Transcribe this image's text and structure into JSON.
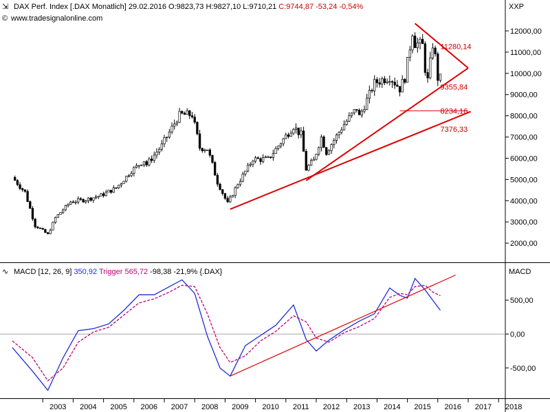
{
  "header": {
    "main_title": "DAX Perf. Index [.DAX  Monatlich] 29.02.2016",
    "ohlc": {
      "o": "O:9823,73",
      "h": "H:9827,10",
      "l": "L:9710,21"
    },
    "close_change": "C:9744,87 -53,24 -0,54%",
    "source": "www.tradesignalonline.com",
    "axis_label": "XXP",
    "macd_name": "MACD [12, 26, 9]",
    "macd_value": "350,92",
    "trigger_name": "Trigger",
    "trigger_value": "565,72",
    "diff": "-98,38 -21,9% {.DAX}",
    "macd_axis_label": "MACD"
  },
  "colors": {
    "price_axis_bg": "#ffffff",
    "trend": "#dd0000",
    "macd": "#1f2bd8",
    "trigger": "#c0007a",
    "candle_up": "#ffffff",
    "candle_down": "#000000",
    "grid": "#cfcfcf"
  },
  "chart_data": [
    {
      "type": "candlestick",
      "title": "DAX Perf. Index [.DAX  Monatlich] 29.02.2016",
      "ylim": [
        1500,
        12600
      ],
      "y_ticks": [
        "2000,00",
        "3000,00",
        "4000,00",
        "5000,00",
        "6000,00",
        "7000,00",
        "8000,00",
        "9000,00",
        "10000,00",
        "11000,00",
        "12000,00"
      ],
      "x_ticks": [
        "2003",
        "2004",
        "2005",
        "2006",
        "2007",
        "2008",
        "2009",
        "2010",
        "2011",
        "2012",
        "2013",
        "2014",
        "2015",
        "2016",
        "2017",
        "2018"
      ],
      "anchors": [
        [
          "2002-01",
          5100
        ],
        [
          "2002-06",
          4400
        ],
        [
          "2002-10",
          2850
        ],
        [
          "2003-03",
          2400
        ],
        [
          "2003-06",
          3200
        ],
        [
          "2003-12",
          3950
        ],
        [
          "2004-06",
          4050
        ],
        [
          "2004-12",
          4250
        ],
        [
          "2005-06",
          4600
        ],
        [
          "2005-12",
          5400
        ],
        [
          "2006-05",
          5900
        ],
        [
          "2006-06",
          5700
        ],
        [
          "2006-12",
          6600
        ],
        [
          "2007-07",
          8050
        ],
        [
          "2007-12",
          8050
        ],
        [
          "2008-03",
          6500
        ],
        [
          "2008-06",
          6450
        ],
        [
          "2008-10",
          4900
        ],
        [
          "2009-02",
          3850
        ],
        [
          "2009-06",
          4800
        ],
        [
          "2009-12",
          5950
        ],
        [
          "2010-06",
          5950
        ],
        [
          "2010-12",
          6900
        ],
        [
          "2011-04",
          7500
        ],
        [
          "2011-07",
          7100
        ],
        [
          "2011-09",
          5500
        ],
        [
          "2011-12",
          5900
        ],
        [
          "2012-03",
          7000
        ],
        [
          "2012-05",
          6300
        ],
        [
          "2012-12",
          7600
        ],
        [
          "2013-05",
          8350
        ],
        [
          "2013-06",
          7950
        ],
        [
          "2013-12",
          9550
        ],
        [
          "2014-06",
          9850
        ],
        [
          "2014-10",
          9300
        ],
        [
          "2014-12",
          9800
        ],
        [
          "2015-03",
          11950
        ],
        [
          "2015-04",
          11450
        ],
        [
          "2015-07",
          11300
        ],
        [
          "2015-08",
          10250
        ],
        [
          "2015-09",
          9650
        ],
        [
          "2015-11",
          11350
        ],
        [
          "2015-12",
          10750
        ],
        [
          "2016-01",
          9800
        ],
        [
          "2016-02",
          9745
        ]
      ],
      "trendlines": [
        {
          "name": "support-2009",
          "from": [
            "2009-03",
            3600
          ],
          "to": [
            "2017-02",
            8200
          ]
        },
        {
          "name": "support-2011",
          "from": [
            "2011-09",
            4950
          ],
          "to": [
            "2017-01",
            10250
          ]
        },
        {
          "name": "resistance-2015",
          "from": [
            "2015-04",
            12350
          ],
          "to": [
            "2017-01",
            10250
          ]
        }
      ],
      "levels": [
        {
          "label": "11280,14",
          "value": 11280.14
        },
        {
          "label": "9355,84",
          "value": 9355.84
        },
        {
          "label": "8234,16",
          "value": 8234.16
        },
        {
          "label": "7376,33",
          "value": 7376.33
        }
      ]
    },
    {
      "type": "line",
      "title": "MACD [12, 26, 9]",
      "ylim": [
        -950,
        1000
      ],
      "y_ticks": [
        "-500,00",
        "0,00",
        "500,00"
      ],
      "series": [
        {
          "name": "MACD",
          "color": "#1f2bd8",
          "values": [
            [
              "2002-01",
              -200
            ],
            [
              "2002-09",
              -550
            ],
            [
              "2003-03",
              -830
            ],
            [
              "2003-09",
              -350
            ],
            [
              "2004-03",
              50
            ],
            [
              "2004-09",
              80
            ],
            [
              "2005-03",
              150
            ],
            [
              "2005-09",
              350
            ],
            [
              "2006-03",
              580
            ],
            [
              "2006-09",
              580
            ],
            [
              "2007-03",
              700
            ],
            [
              "2007-08",
              800
            ],
            [
              "2008-01",
              600
            ],
            [
              "2008-06",
              -30
            ],
            [
              "2008-11",
              -500
            ],
            [
              "2009-03",
              -620
            ],
            [
              "2009-09",
              -170
            ],
            [
              "2010-03",
              -20
            ],
            [
              "2010-09",
              130
            ],
            [
              "2011-04",
              430
            ],
            [
              "2011-09",
              -80
            ],
            [
              "2012-01",
              -250
            ],
            [
              "2012-06",
              -90
            ],
            [
              "2012-12",
              60
            ],
            [
              "2013-06",
              190
            ],
            [
              "2013-12",
              300
            ],
            [
              "2014-06",
              680
            ],
            [
              "2014-10",
              570
            ],
            [
              "2015-01",
              530
            ],
            [
              "2015-04",
              820
            ],
            [
              "2015-08",
              650
            ],
            [
              "2015-11",
              500
            ],
            [
              "2016-02",
              350.92
            ]
          ]
        },
        {
          "name": "Trigger",
          "color": "#c0007a",
          "values": [
            [
              "2002-01",
              -100
            ],
            [
              "2002-09",
              -350
            ],
            [
              "2003-03",
              -690
            ],
            [
              "2003-09",
              -500
            ],
            [
              "2004-03",
              -120
            ],
            [
              "2004-09",
              30
            ],
            [
              "2005-03",
              100
            ],
            [
              "2005-09",
              280
            ],
            [
              "2006-03",
              460
            ],
            [
              "2006-09",
              520
            ],
            [
              "2007-03",
              620
            ],
            [
              "2007-08",
              720
            ],
            [
              "2008-01",
              700
            ],
            [
              "2008-06",
              300
            ],
            [
              "2008-11",
              -200
            ],
            [
              "2009-03",
              -420
            ],
            [
              "2009-09",
              -320
            ],
            [
              "2010-03",
              -100
            ],
            [
              "2010-09",
              40
            ],
            [
              "2011-04",
              270
            ],
            [
              "2011-09",
              180
            ],
            [
              "2012-01",
              -60
            ],
            [
              "2012-06",
              -120
            ],
            [
              "2012-12",
              20
            ],
            [
              "2013-06",
              110
            ],
            [
              "2013-12",
              230
            ],
            [
              "2014-06",
              540
            ],
            [
              "2014-10",
              600
            ],
            [
              "2015-01",
              580
            ],
            [
              "2015-04",
              700
            ],
            [
              "2015-08",
              720
            ],
            [
              "2015-11",
              620
            ],
            [
              "2016-02",
              565.72
            ]
          ]
        }
      ],
      "trendlines": [
        {
          "name": "macd-trend",
          "from": [
            "2009-03",
            -620
          ],
          "to": [
            "2016-08",
            870
          ]
        }
      ]
    }
  ]
}
